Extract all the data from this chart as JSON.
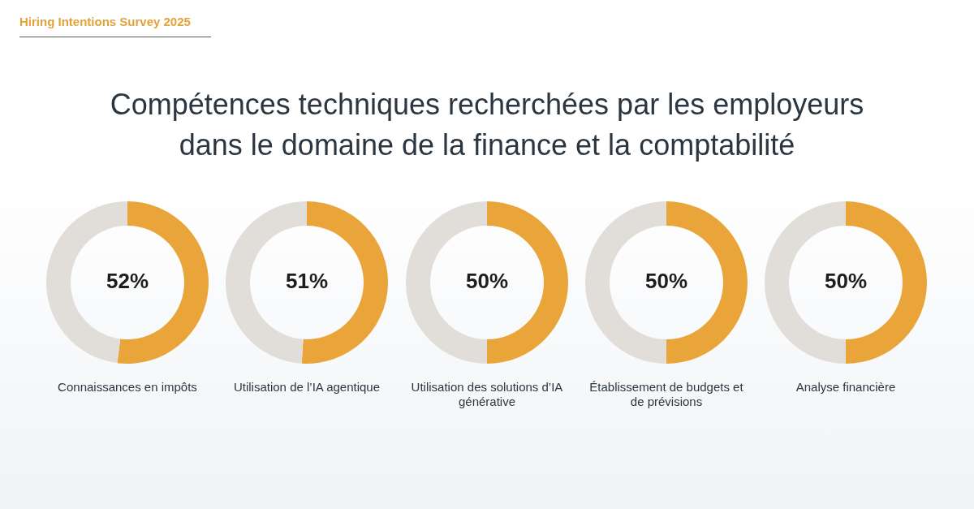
{
  "chart_data": [
    {
      "type": "donut",
      "title": "Compétences techniques recherchées par les employeurs dans le domaine de la finance et la comptabilité",
      "annotations": [
        "Hiring Intentions Survey 2025"
      ],
      "categories": [
        "Connaissances en impôts",
        null
      ],
      "values": [
        52,
        48
      ],
      "colors": [
        "#e9a53a",
        "#e1ded9"
      ],
      "value_labels": [
        "52%",
        null
      ]
    },
    {
      "type": "donut",
      "categories": [
        "Utilisation de l’IA agentique",
        null
      ],
      "values": [
        51,
        49
      ],
      "colors": [
        "#e9a53a",
        "#e1ded9"
      ],
      "value_labels": [
        "51%",
        null
      ]
    },
    {
      "type": "donut",
      "categories": [
        "Utilisation des solutions d’IA générative",
        null
      ],
      "values": [
        50,
        50
      ],
      "colors": [
        "#e9a53a",
        "#e1ded9"
      ],
      "value_labels": [
        "50%",
        null
      ]
    },
    {
      "type": "donut",
      "categories": [
        "Établissement de budgets et de prévisions",
        null
      ],
      "values": [
        50,
        50
      ],
      "colors": [
        "#e9a53a",
        "#e1ded9"
      ],
      "value_labels": [
        "50%",
        null
      ]
    },
    {
      "type": "donut",
      "categories": [
        "Analyse financière",
        null
      ],
      "values": [
        50,
        50
      ],
      "colors": [
        "#e9a53a",
        "#e1ded9"
      ],
      "value_labels": [
        "50%",
        null
      ]
    }
  ]
}
